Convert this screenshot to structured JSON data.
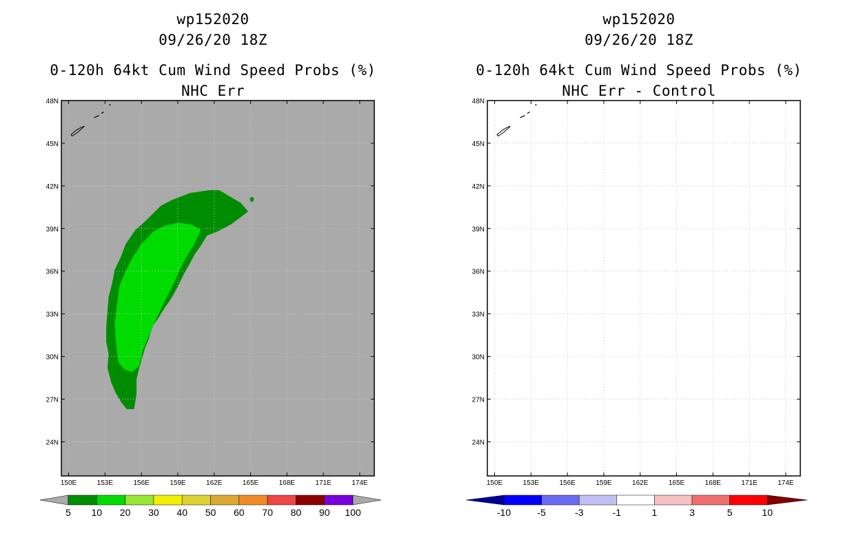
{
  "panels": [
    {
      "storm_id": "wp152020",
      "datetime": "09/26/20 18Z",
      "title": "0-120h 64kt Cum Wind Speed Probs (%)",
      "subtitle": "NHC Err",
      "colorbar": {
        "labels": [
          "5",
          "10",
          "20",
          "30",
          "40",
          "50",
          "60",
          "70",
          "80",
          "90",
          "100"
        ],
        "colors": [
          "#008c00",
          "#00dc00",
          "#96e632",
          "#f0f000",
          "#dcd232",
          "#dcaa32",
          "#f08c28",
          "#f04646",
          "#8c0000",
          "#7800dc"
        ],
        "extend_color": "#aaaaaa"
      }
    },
    {
      "storm_id": "wp152020",
      "datetime": "09/26/20 18Z",
      "title": "0-120h 64kt Cum Wind Speed Probs (%)",
      "subtitle": "NHC Err - Control",
      "colorbar": {
        "labels": [
          "-10",
          "-5",
          "-3",
          "-1",
          "1",
          "3",
          "5",
          "10"
        ],
        "colors": [
          "#0000ff",
          "#6a6af0",
          "#c0c0f4",
          "#ffffff",
          "#f8c0c0",
          "#f06e6e",
          "#ff0000"
        ],
        "low_color": "#000096",
        "high_color": "#820000"
      }
    }
  ],
  "chart_data": [
    {
      "type": "heatmap",
      "title": "0-120h 64kt Cum Wind Speed Probs (%)",
      "subtitle": "NHC Err",
      "background": "#aaaaaa",
      "xlim": [
        149.4,
        175.2
      ],
      "ylim": [
        21.6,
        48
      ],
      "x_ticks": [
        "150E",
        "153E",
        "156E",
        "159E",
        "162E",
        "165E",
        "168E",
        "171E",
        "174E"
      ],
      "x_tick_values": [
        150,
        153,
        156,
        159,
        162,
        165,
        168,
        171,
        174
      ],
      "y_ticks": [
        "24N",
        "27N",
        "30N",
        "33N",
        "36N",
        "39N",
        "42N",
        "45N",
        "48N"
      ],
      "y_tick_values": [
        24,
        27,
        30,
        33,
        36,
        39,
        42,
        45,
        48
      ],
      "grid": true,
      "contours": [
        {
          "level": "5-10",
          "color": "#008c00",
          "lon": [
            154.8,
            154.4,
            153.9,
            153.5,
            153.2,
            153.3,
            153.1,
            153.1,
            153.2,
            153.3,
            153.6,
            153.8,
            154.3,
            154.7,
            155.5,
            156.3,
            157.6,
            158.5,
            160,
            161.6,
            162.4,
            163.4,
            164.2,
            164.8,
            164.2,
            163.4,
            162.3,
            161.4,
            160.9,
            160.4,
            159.9,
            159.5,
            159,
            158.4,
            157.9,
            157.4,
            156.9,
            156.6,
            156.3,
            156,
            155.8,
            155.6,
            155.6,
            155.4
          ],
          "lat": [
            26.3,
            26.7,
            27.4,
            28.2,
            29.2,
            30.2,
            31,
            32,
            33.2,
            34.2,
            35.2,
            36.1,
            37,
            37.9,
            38.9,
            39.5,
            40.6,
            41,
            41.5,
            41.7,
            41.7,
            41.2,
            40.8,
            40.2,
            39.8,
            39.3,
            38.8,
            38.5,
            37.8,
            37.2,
            36.4,
            35.8,
            34.9,
            34,
            33.4,
            32.7,
            32.1,
            31.2,
            30.6,
            29.7,
            29.1,
            28.4,
            27.4,
            26.3
          ]
        },
        {
          "level": "10-20",
          "color": "#00dc00",
          "lon": [
            155.2,
            154.6,
            154.1,
            153.9,
            153.8,
            154,
            154.2,
            154.7,
            155.3,
            156,
            157,
            157.9,
            159,
            160.1,
            160.9,
            160.3,
            159.7,
            159.1,
            158.7,
            158.1,
            157.6,
            157.1,
            156.6,
            156.1,
            155.8
          ],
          "lat": [
            28.9,
            29.1,
            29.6,
            31,
            32.3,
            33.7,
            35,
            36,
            37,
            37.9,
            38.8,
            39.2,
            39.4,
            39.3,
            38.9,
            37.8,
            37,
            36,
            35.2,
            34.2,
            33.3,
            32.4,
            31.4,
            30.4,
            29.3
          ]
        }
      ],
      "coastline": {
        "lon": [
          150.2,
          150.6,
          151,
          151.3,
          150.8,
          150.3,
          150.2
        ],
        "lat": [
          45.6,
          45.9,
          46.1,
          46.2,
          45.8,
          45.5,
          45.6
        ]
      }
    },
    {
      "type": "heatmap",
      "title": "0-120h 64kt Cum Wind Speed Probs (%)",
      "subtitle": "NHC Err - Control",
      "background": "#ffffff",
      "xlim": [
        149.4,
        175.2
      ],
      "ylim": [
        21.6,
        48
      ],
      "x_ticks": [
        "150E",
        "153E",
        "156E",
        "159E",
        "162E",
        "165E",
        "168E",
        "171E",
        "174E"
      ],
      "x_tick_values": [
        150,
        153,
        156,
        159,
        162,
        165,
        168,
        171,
        174
      ],
      "y_ticks": [
        "24N",
        "27N",
        "30N",
        "33N",
        "36N",
        "39N",
        "42N",
        "45N",
        "48N"
      ],
      "y_tick_values": [
        24,
        27,
        30,
        33,
        36,
        39,
        42,
        45,
        48
      ],
      "grid": true,
      "contours": [],
      "coastline": {
        "lon": [
          150.2,
          150.6,
          151,
          151.3,
          150.8,
          150.3,
          150.2
        ],
        "lat": [
          45.6,
          45.9,
          46.1,
          46.2,
          45.8,
          45.5,
          45.6
        ]
      }
    }
  ]
}
